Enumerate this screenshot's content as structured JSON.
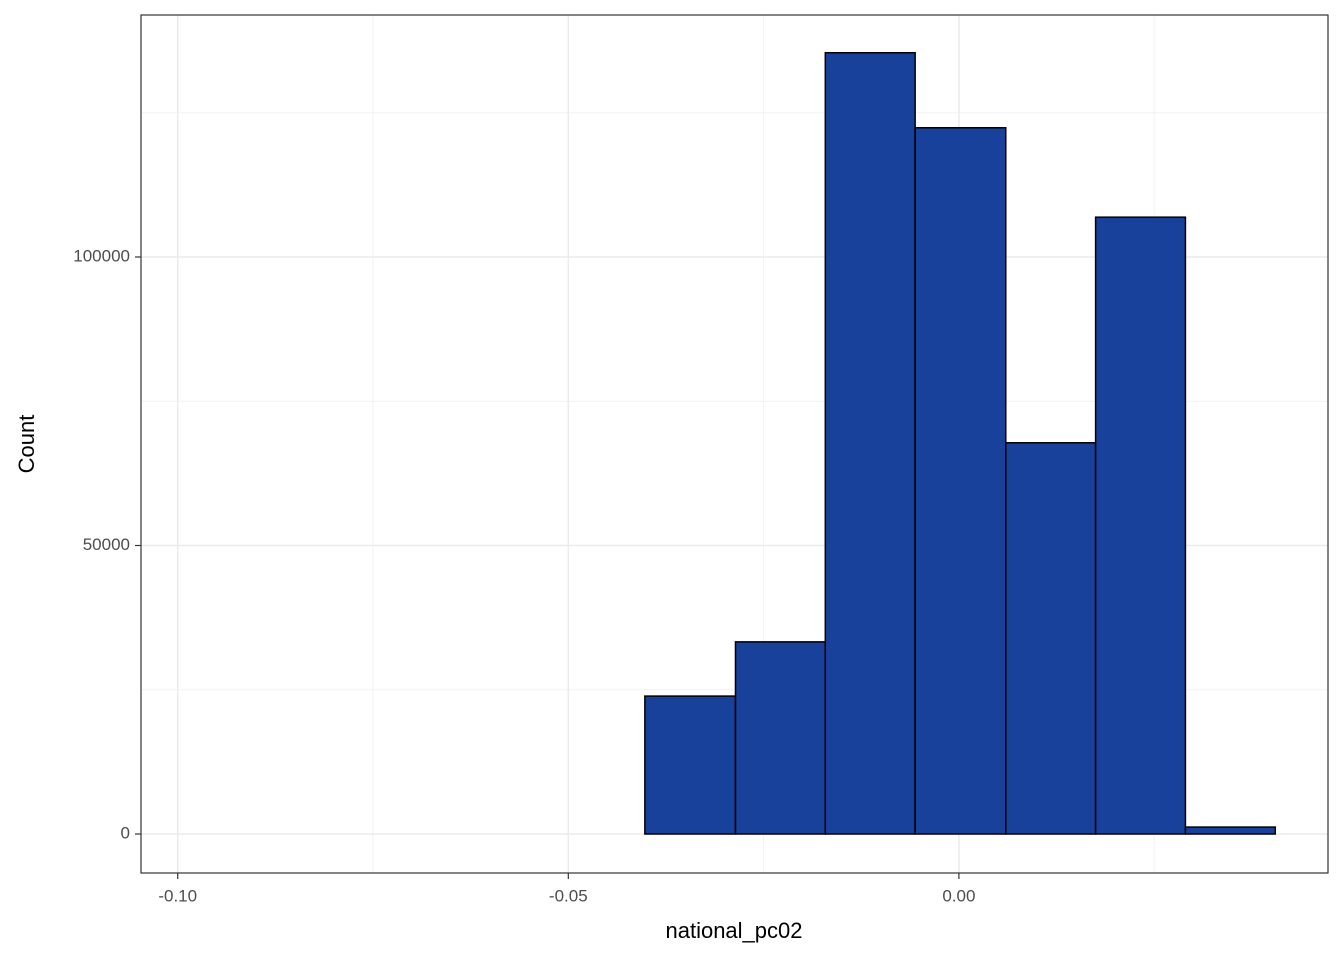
{
  "chart_data": {
    "type": "histogram",
    "xlabel": "national_pc02",
    "ylabel": "Count",
    "bins": [
      -0.0978,
      -0.0863,
      -0.0748,
      -0.0632,
      -0.0517,
      -0.0402,
      -0.0286,
      -0.0171,
      -0.0056,
      0.006,
      0.0175,
      0.029,
      0.0405
    ],
    "values": [
      0,
      0,
      0,
      0,
      0,
      23900,
      33300,
      135400,
      122400,
      67800,
      106900,
      1200
    ],
    "color": "#17419a",
    "edge_color": "#000000",
    "xlim": [
      -0.1047,
      0.04725
    ],
    "ylim": [
      -6760,
      141940
    ],
    "xticks": [
      {
        "value": -0.1,
        "label": "-0.10"
      },
      {
        "value": -0.05,
        "label": "-0.05"
      },
      {
        "value": 0,
        "label": "0.00"
      }
    ],
    "yticks": [
      0,
      50000,
      100000
    ],
    "grid": true,
    "minor_grid": {
      "x": [
        -0.075,
        -0.025,
        0.025
      ],
      "y": [
        25000,
        75000,
        125000
      ]
    }
  }
}
